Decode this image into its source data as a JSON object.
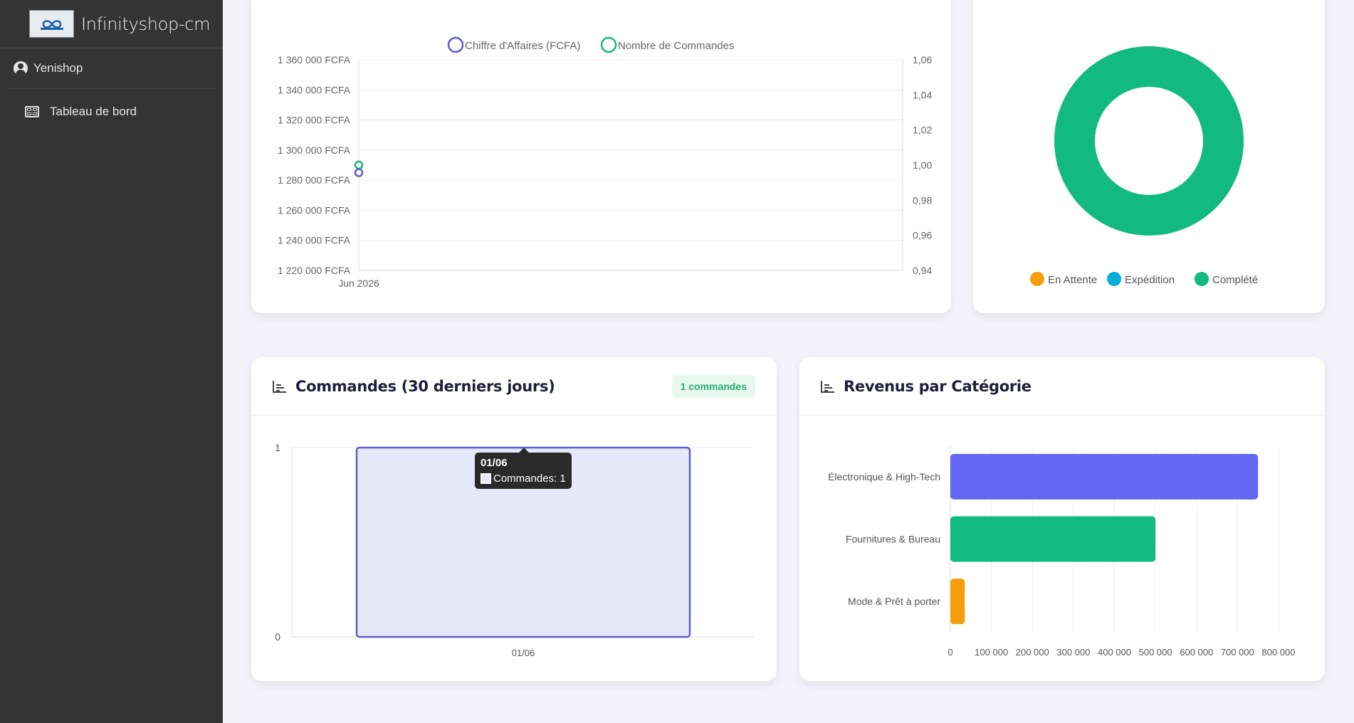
{
  "sidebar": {
    "brand_name": "Infinityshop-cm",
    "user_name": "Yenishop",
    "nav_items": [
      {
        "label": "Tableau de bord",
        "icon": "grid-icon"
      }
    ]
  },
  "sales_chart": {
    "chart_data": {
      "type": "line",
      "x": [
        "Jun 2026"
      ],
      "series": [
        {
          "name": "Chiffre d'Affaires (FCFA)",
          "axis": "left",
          "values": [
            1285000
          ],
          "color": "#5b5bd6"
        },
        {
          "name": "Nombre de Commandes",
          "axis": "right",
          "values": [
            1.0
          ],
          "color": "#17b978"
        }
      ],
      "y_left": {
        "ylim": [
          1220000,
          1360000
        ],
        "ticks": [
          "1 360 000 FCFA",
          "1 340 000 FCFA",
          "1 320 000 FCFA",
          "1 300 000 FCFA",
          "1 280 000 FCFA",
          "1 260 000 FCFA",
          "1 240 000 FCFA",
          "1 220 000 FCFA"
        ]
      },
      "y_right": {
        "ylim": [
          0.94,
          1.06
        ],
        "ticks": [
          "1,06",
          "1,04",
          "1,02",
          "1,00",
          "0,98",
          "0,96",
          "0,94"
        ]
      },
      "legend": "top",
      "grid": true
    }
  },
  "status_chart": {
    "chart_data": {
      "type": "pie",
      "donut": true,
      "labels": [
        "En Attente",
        "Expédition",
        "Complété"
      ],
      "values": [
        0,
        0,
        1
      ],
      "colors": [
        "#f59e0b",
        "#06aed5",
        "#12b981"
      ],
      "legend": "bottom"
    }
  },
  "orders_card": {
    "title": "Commandes (30 derniers jours)",
    "badge": "1 commandes",
    "chart_data": {
      "type": "bar",
      "categories": [
        "01/06"
      ],
      "series": [
        {
          "name": "Commandes",
          "values": [
            1
          ]
        }
      ],
      "ylim": [
        0,
        1
      ],
      "y_ticks": [
        "1",
        "0"
      ]
    },
    "tooltip": {
      "title": "01/06",
      "label": "Commandes: 1"
    }
  },
  "revenue_card": {
    "title": "Revenus par Catégorie",
    "chart_data": {
      "type": "bar",
      "orientation": "horizontal",
      "categories": [
        "Électronique & High-Tech",
        "Fournitures & Bureau",
        "Mode & Prêt à porter"
      ],
      "values": [
        750000,
        500000,
        35000
      ],
      "colors": [
        "#6366f1",
        "#12b981",
        "#f59e0b"
      ],
      "xlim": [
        0,
        800000
      ],
      "x_ticks": [
        "0",
        "100 000",
        "200 000",
        "300 000",
        "400 000",
        "500 000",
        "600 000",
        "700 000",
        "800 000"
      ]
    }
  }
}
